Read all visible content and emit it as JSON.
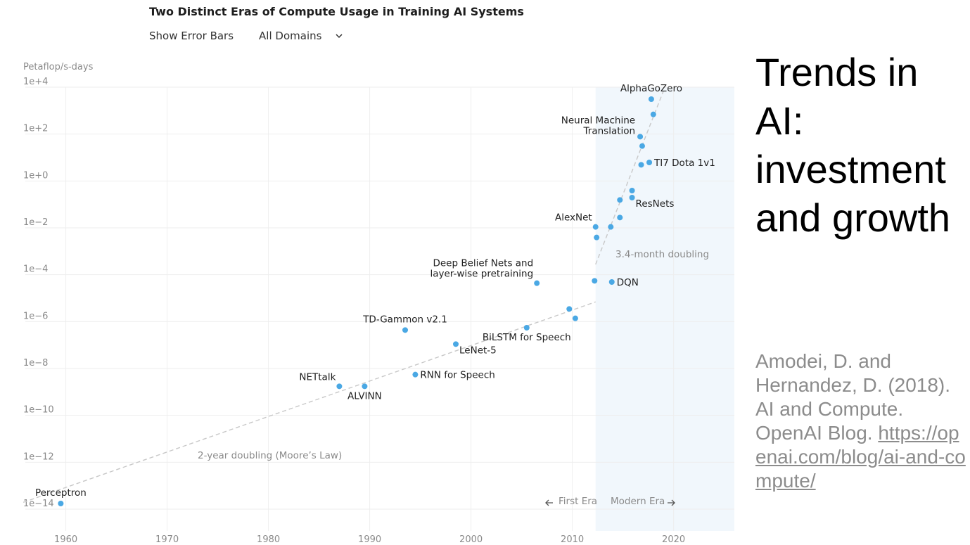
{
  "header": {
    "title": "Two Distinct Eras of Compute Usage in Training AI Systems",
    "error_bars_label": "Show Error Bars",
    "domain_select_value": "All Domains"
  },
  "slide": {
    "title": "Trends in AI: investment and growth",
    "citation_text": "Amodei, D. and Hernandez, D. (2018). AI and Compute. OpenAI Blog.",
    "citation_url": "https://openai.com/blog/ai-and-compute/"
  },
  "colors": {
    "point": "#4aa8e4",
    "modern_era_shade": "#f1f7fc",
    "trend_line": "#c8c8c8",
    "grid": "#eeeeee"
  },
  "chart_data": {
    "type": "scatter",
    "title": "Two Distinct Eras of Compute Usage in Training AI Systems",
    "ylabel": "Petaflop/s-days",
    "xlabel": "",
    "yscale": "log10",
    "xlim": [
      1956,
      2026
    ],
    "ylim_exp": [
      -14.3,
      4.3
    ],
    "x_ticks": [
      1960,
      1970,
      1980,
      1990,
      2000,
      2010,
      2020
    ],
    "y_tick_exps": [
      4,
      2,
      0,
      -2,
      -4,
      -6,
      -8,
      -10,
      -12,
      -14
    ],
    "y_tick_labels": [
      "1e+4",
      "1e+2",
      "1e+0",
      "1e−2",
      "1e−4",
      "1e−6",
      "1e−8",
      "1e−10",
      "1e−12",
      "1e−14"
    ],
    "modern_era_start": 2012.3,
    "points": [
      {
        "name": "Perceptron",
        "x": 1959.5,
        "y_exp": -14.0,
        "label": "Perceptron",
        "label_pos": "above"
      },
      {
        "name": "NETtalk",
        "x": 1987.0,
        "y_exp": -9.0,
        "label": "NETtalk",
        "label_pos": "above-left"
      },
      {
        "name": "ALVINN",
        "x": 1989.5,
        "y_exp": -9.0,
        "label": "ALVINN",
        "label_pos": "below"
      },
      {
        "name": "TD-Gammon v2.1",
        "x": 1993.5,
        "y_exp": -6.6,
        "label": "TD-Gammon v2.1",
        "label_pos": "above"
      },
      {
        "name": "RNN for Speech",
        "x": 1994.5,
        "y_exp": -8.5,
        "label": "RNN for Speech",
        "label_pos": "right"
      },
      {
        "name": "LeNet-5",
        "x": 1998.5,
        "y_exp": -7.2,
        "label": "LeNet-5",
        "label_pos": "below-right"
      },
      {
        "name": "BiLSTM for Speech",
        "x": 2005.5,
        "y_exp": -6.5,
        "label": "BiLSTM for Speech",
        "label_pos": "below"
      },
      {
        "name": "Deep Belief Nets and layer-wise pretraining",
        "x": 2006.5,
        "y_exp": -4.6,
        "label_lines": [
          "Deep Belief Nets and",
          "layer-wise pretraining"
        ],
        "label_pos": "above-left"
      },
      {
        "name": "Unlabeled A",
        "x": 2009.7,
        "y_exp": -5.7
      },
      {
        "name": "Unlabeled B",
        "x": 2010.3,
        "y_exp": -6.1
      },
      {
        "name": "Unlabeled C",
        "x": 2012.2,
        "y_exp": -4.5
      },
      {
        "name": "DQN",
        "x": 2013.9,
        "y_exp": -4.55,
        "label": "DQN",
        "label_pos": "right"
      },
      {
        "name": "AlexNet",
        "x": 2012.3,
        "y_exp": -2.2,
        "label": "AlexNet",
        "label_pos": "above-left"
      },
      {
        "name": "Unlabeled D",
        "x": 2012.4,
        "y_exp": -2.65
      },
      {
        "name": "Unlabeled E",
        "x": 2013.8,
        "y_exp": -2.2
      },
      {
        "name": "Unlabeled F",
        "x": 2014.7,
        "y_exp": -1.8
      },
      {
        "name": "Unlabeled G",
        "x": 2014.7,
        "y_exp": -1.05
      },
      {
        "name": "Unlabeled H",
        "x": 2015.9,
        "y_exp": -0.65
      },
      {
        "name": "ResNets",
        "x": 2015.9,
        "y_exp": -0.95,
        "label": "ResNets",
        "label_pos": "below-right"
      },
      {
        "name": "Unlabeled I",
        "x": 2016.8,
        "y_exp": 0.45
      },
      {
        "name": "TI7 Dota 1v1",
        "x": 2017.6,
        "y_exp": 0.55,
        "label": "TI7 Dota 1v1",
        "label_pos": "right"
      },
      {
        "name": "Neural Machine Translation",
        "x": 2016.7,
        "y_exp": 1.65,
        "label_lines": [
          "Neural Machine",
          "Translation"
        ],
        "label_pos": "left"
      },
      {
        "name": "Unlabeled J",
        "x": 2016.9,
        "y_exp": 1.25
      },
      {
        "name": "Unlabeled K",
        "x": 2018.0,
        "y_exp": 2.6
      },
      {
        "name": "AlphaGoZero",
        "x": 2017.8,
        "y_exp": 3.25,
        "label": "AlphaGoZero",
        "label_pos": "above"
      }
    ],
    "trend_lines": [
      {
        "name": "2-year doubling (Moore's Law)",
        "from": [
          1955.8,
          -13.95
        ],
        "to": [
          2012.3,
          -5.4
        ],
        "label": "2-year doubling (Moore’s Law)"
      },
      {
        "name": "3.4-month doubling",
        "from": [
          2012.3,
          -3.8
        ],
        "to": [
          2019.0,
          3.6
        ],
        "label": "3.4-month doubling"
      }
    ],
    "era_labels": {
      "first": "First Era",
      "modern": "Modern Era"
    }
  }
}
